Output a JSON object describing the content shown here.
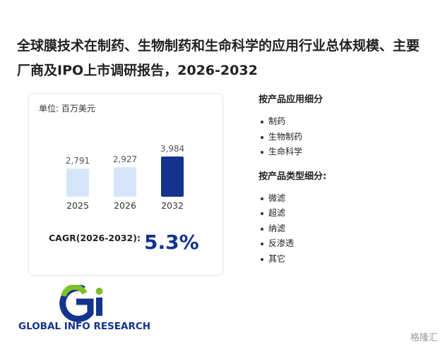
{
  "title": "全球膜技术在制药、生物制药和生命科学的应用行业总体规模、主要厂商及IPO上市调研报告，2026-2032",
  "unit": "单位: 百万美元",
  "chart_data": {
    "type": "bar",
    "categories": [
      "2025",
      "2026",
      "2032"
    ],
    "values": [
      2791,
      2927,
      3984
    ],
    "value_labels": [
      "2,791",
      "2,927",
      "3,984"
    ],
    "colors": [
      "#d5e6fa",
      "#d5e6fa",
      "#13338c"
    ]
  },
  "cagr": {
    "label": "CAGR(2026-2032):",
    "value": "5.3%"
  },
  "sections": [
    {
      "heading": "按产品应用细分",
      "items": [
        "制药",
        "生物制药",
        "生命科学"
      ]
    },
    {
      "heading": "按产品类型细分:",
      "items": [
        "微滤",
        "超滤",
        "纳滤",
        "反渗透",
        "其它"
      ]
    }
  ],
  "logo": "GLOBAL INFO RESEARCH",
  "watermark": "格隆汇"
}
